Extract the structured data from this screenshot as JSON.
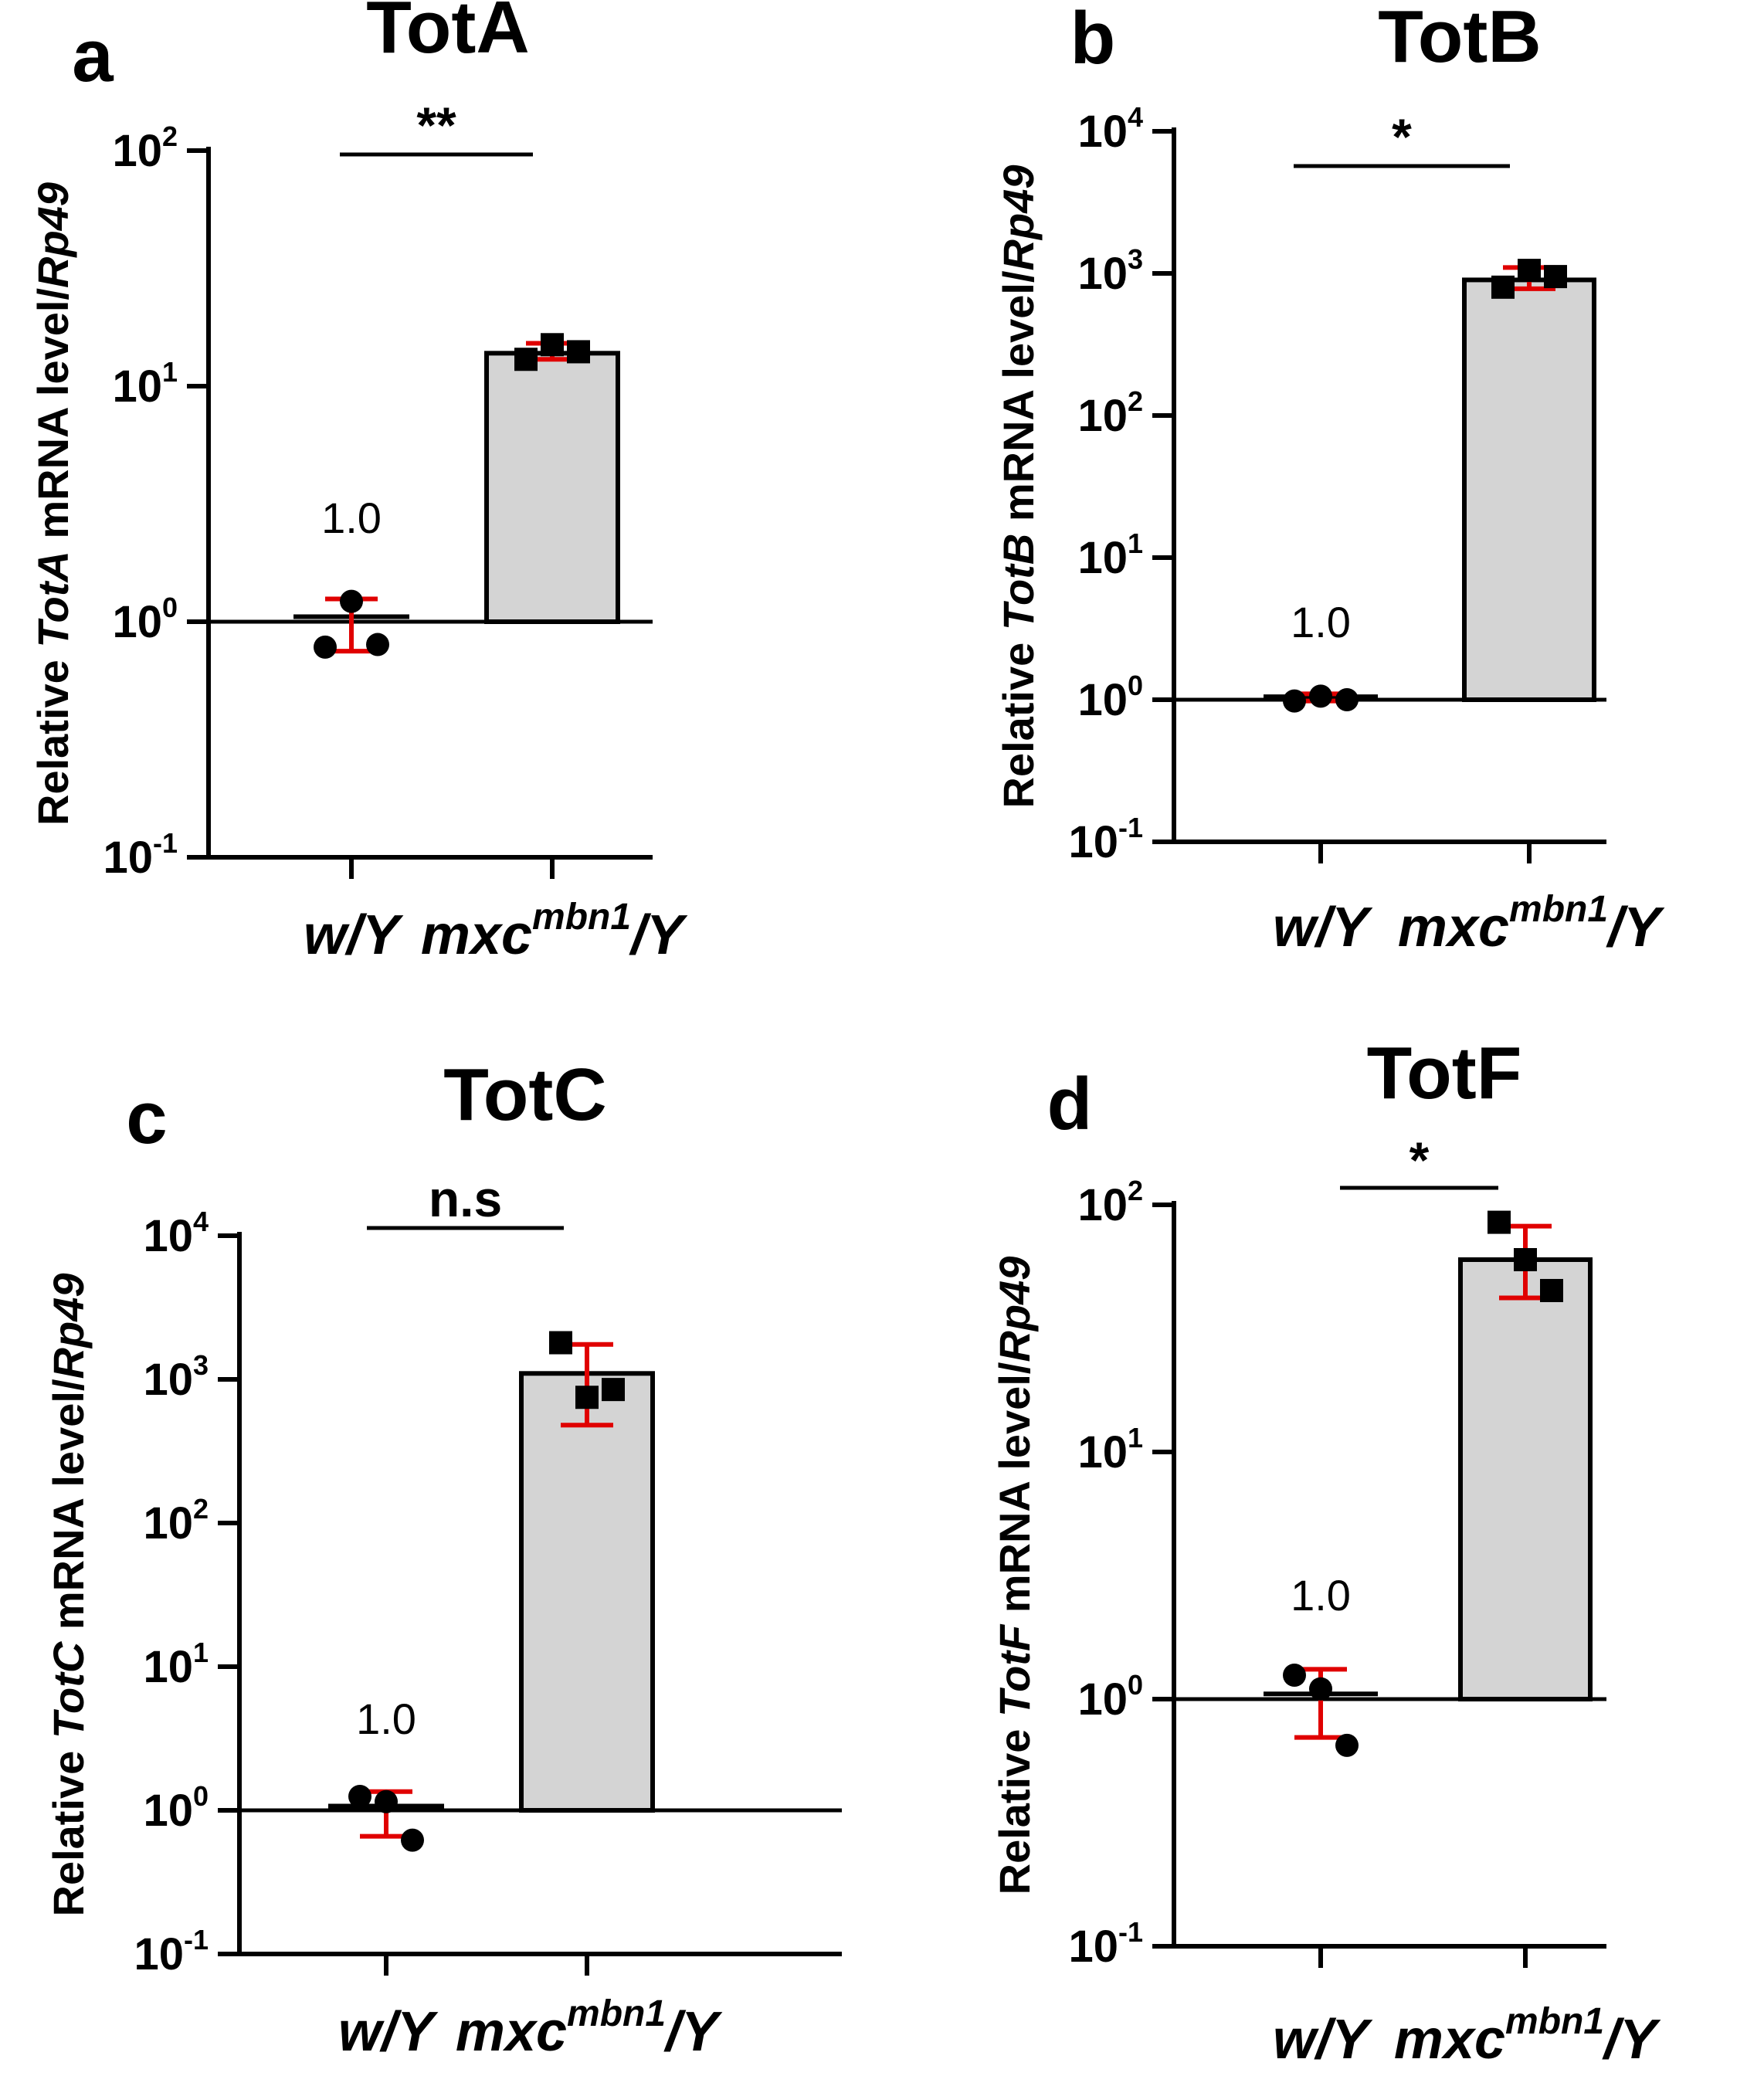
{
  "figure": {
    "background": "#ffffff"
  },
  "colors": {
    "bar_fill": "#d4d4d4",
    "error_bar": "#e00000",
    "axis": "#000000",
    "points": "#000000"
  },
  "chart_data": [
    {
      "panel": "a",
      "type": "bar",
      "title": "TotA",
      "ylabel": {
        "prefix": "Relative ",
        "gene": "TotA",
        "middle": " mRNA level/",
        "ref": "Rp49"
      },
      "yscale": "log",
      "ylim": [
        0.1,
        100
      ],
      "yticks": [
        {
          "base": "10",
          "exp": "2",
          "value": 100
        },
        {
          "base": "10",
          "exp": "1",
          "value": 10
        },
        {
          "base": "10",
          "exp": "0",
          "value": 1
        },
        {
          "base": "10",
          "exp": "-1",
          "value": 0.1
        }
      ],
      "categories": [
        {
          "base": "w/Y",
          "sup": "",
          "tail": ""
        },
        {
          "base": "mxc",
          "sup": "mbn1",
          "tail": "/Y"
        }
      ],
      "bars": [
        {
          "mean": 1.05,
          "err_low": 0.75,
          "err_high": 1.25,
          "points": [
            0.78,
            1.22,
            0.8
          ],
          "marker": "circle",
          "label": "1.0"
        },
        {
          "mean": 13.8,
          "err_low": 13.0,
          "err_high": 15.2,
          "points": [
            13.0,
            15.0,
            14.0
          ],
          "marker": "square",
          "label": ""
        }
      ],
      "significance": "**"
    },
    {
      "panel": "b",
      "type": "bar",
      "title": "TotB",
      "ylabel": {
        "prefix": "Relative ",
        "gene": "TotB",
        "middle": " mRNA level/",
        "ref": "Rp49"
      },
      "yscale": "log",
      "ylim": [
        0.1,
        10000
      ],
      "yticks": [
        {
          "base": "10",
          "exp": "4",
          "value": 10000
        },
        {
          "base": "10",
          "exp": "3",
          "value": 1000
        },
        {
          "base": "10",
          "exp": "2",
          "value": 100
        },
        {
          "base": "10",
          "exp": "1",
          "value": 10
        },
        {
          "base": "10",
          "exp": "0",
          "value": 1
        },
        {
          "base": "10",
          "exp": "-1",
          "value": 0.1
        }
      ],
      "categories": [
        {
          "base": "w/Y",
          "sup": "",
          "tail": ""
        },
        {
          "base": "mxc",
          "sup": "mbn1",
          "tail": "/Y"
        }
      ],
      "bars": [
        {
          "mean": 1.05,
          "err_low": 0.98,
          "err_high": 1.1,
          "points": [
            0.98,
            1.06,
            1.0
          ],
          "marker": "circle",
          "label": "1.0"
        },
        {
          "mean": 900,
          "err_low": 780,
          "err_high": 1100,
          "points": [
            800,
            1050,
            950
          ],
          "marker": "square",
          "label": ""
        }
      ],
      "significance": "*"
    },
    {
      "panel": "c",
      "type": "bar",
      "title": "TotC",
      "ylabel": {
        "prefix": "Relative ",
        "gene": "TotC",
        "middle": " mRNA level/",
        "ref": "Rp49"
      },
      "yscale": "log",
      "ylim": [
        0.1,
        10000
      ],
      "yticks": [
        {
          "base": "10",
          "exp": "4",
          "value": 10000
        },
        {
          "base": "10",
          "exp": "3",
          "value": 1000
        },
        {
          "base": "10",
          "exp": "2",
          "value": 100
        },
        {
          "base": "10",
          "exp": "1",
          "value": 10
        },
        {
          "base": "10",
          "exp": "0",
          "value": 1
        },
        {
          "base": "10",
          "exp": "-1",
          "value": 0.1
        }
      ],
      "categories": [
        {
          "base": "w/Y",
          "sup": "",
          "tail": ""
        },
        {
          "base": "mxc",
          "sup": "mbn1",
          "tail": "/Y"
        }
      ],
      "bars": [
        {
          "mean": 1.07,
          "err_low": 0.66,
          "err_high": 1.35,
          "points": [
            1.25,
            1.15,
            0.62
          ],
          "marker": "circle",
          "label": "1.0"
        },
        {
          "mean": 1100,
          "err_low": 480,
          "err_high": 1750,
          "points": [
            1800,
            750,
            850
          ],
          "marker": "square",
          "label": ""
        }
      ],
      "significance": "n.s"
    },
    {
      "panel": "d",
      "type": "bar",
      "title": "TotF",
      "ylabel": {
        "prefix": "Relative ",
        "gene": "TotF",
        "middle": " mRNA level/",
        "ref": "Rp49"
      },
      "yscale": "log",
      "ylim": [
        0.1,
        100
      ],
      "yticks": [
        {
          "base": "10",
          "exp": "2",
          "value": 100
        },
        {
          "base": "10",
          "exp": "1",
          "value": 10
        },
        {
          "base": "10",
          "exp": "0",
          "value": 1
        },
        {
          "base": "10",
          "exp": "-1",
          "value": 0.1
        }
      ],
      "categories": [
        {
          "base": "w/Y",
          "sup": "",
          "tail": ""
        },
        {
          "base": "mxc",
          "sup": "mbn1",
          "tail": "/Y"
        }
      ],
      "bars": [
        {
          "mean": 1.05,
          "err_low": 0.7,
          "err_high": 1.32,
          "points": [
            1.25,
            1.1,
            0.65
          ],
          "marker": "circle",
          "label": "1.0"
        },
        {
          "mean": 60,
          "err_low": 42,
          "err_high": 82,
          "points": [
            85,
            60,
            45
          ],
          "marker": "square",
          "label": ""
        }
      ],
      "significance": "*"
    }
  ]
}
